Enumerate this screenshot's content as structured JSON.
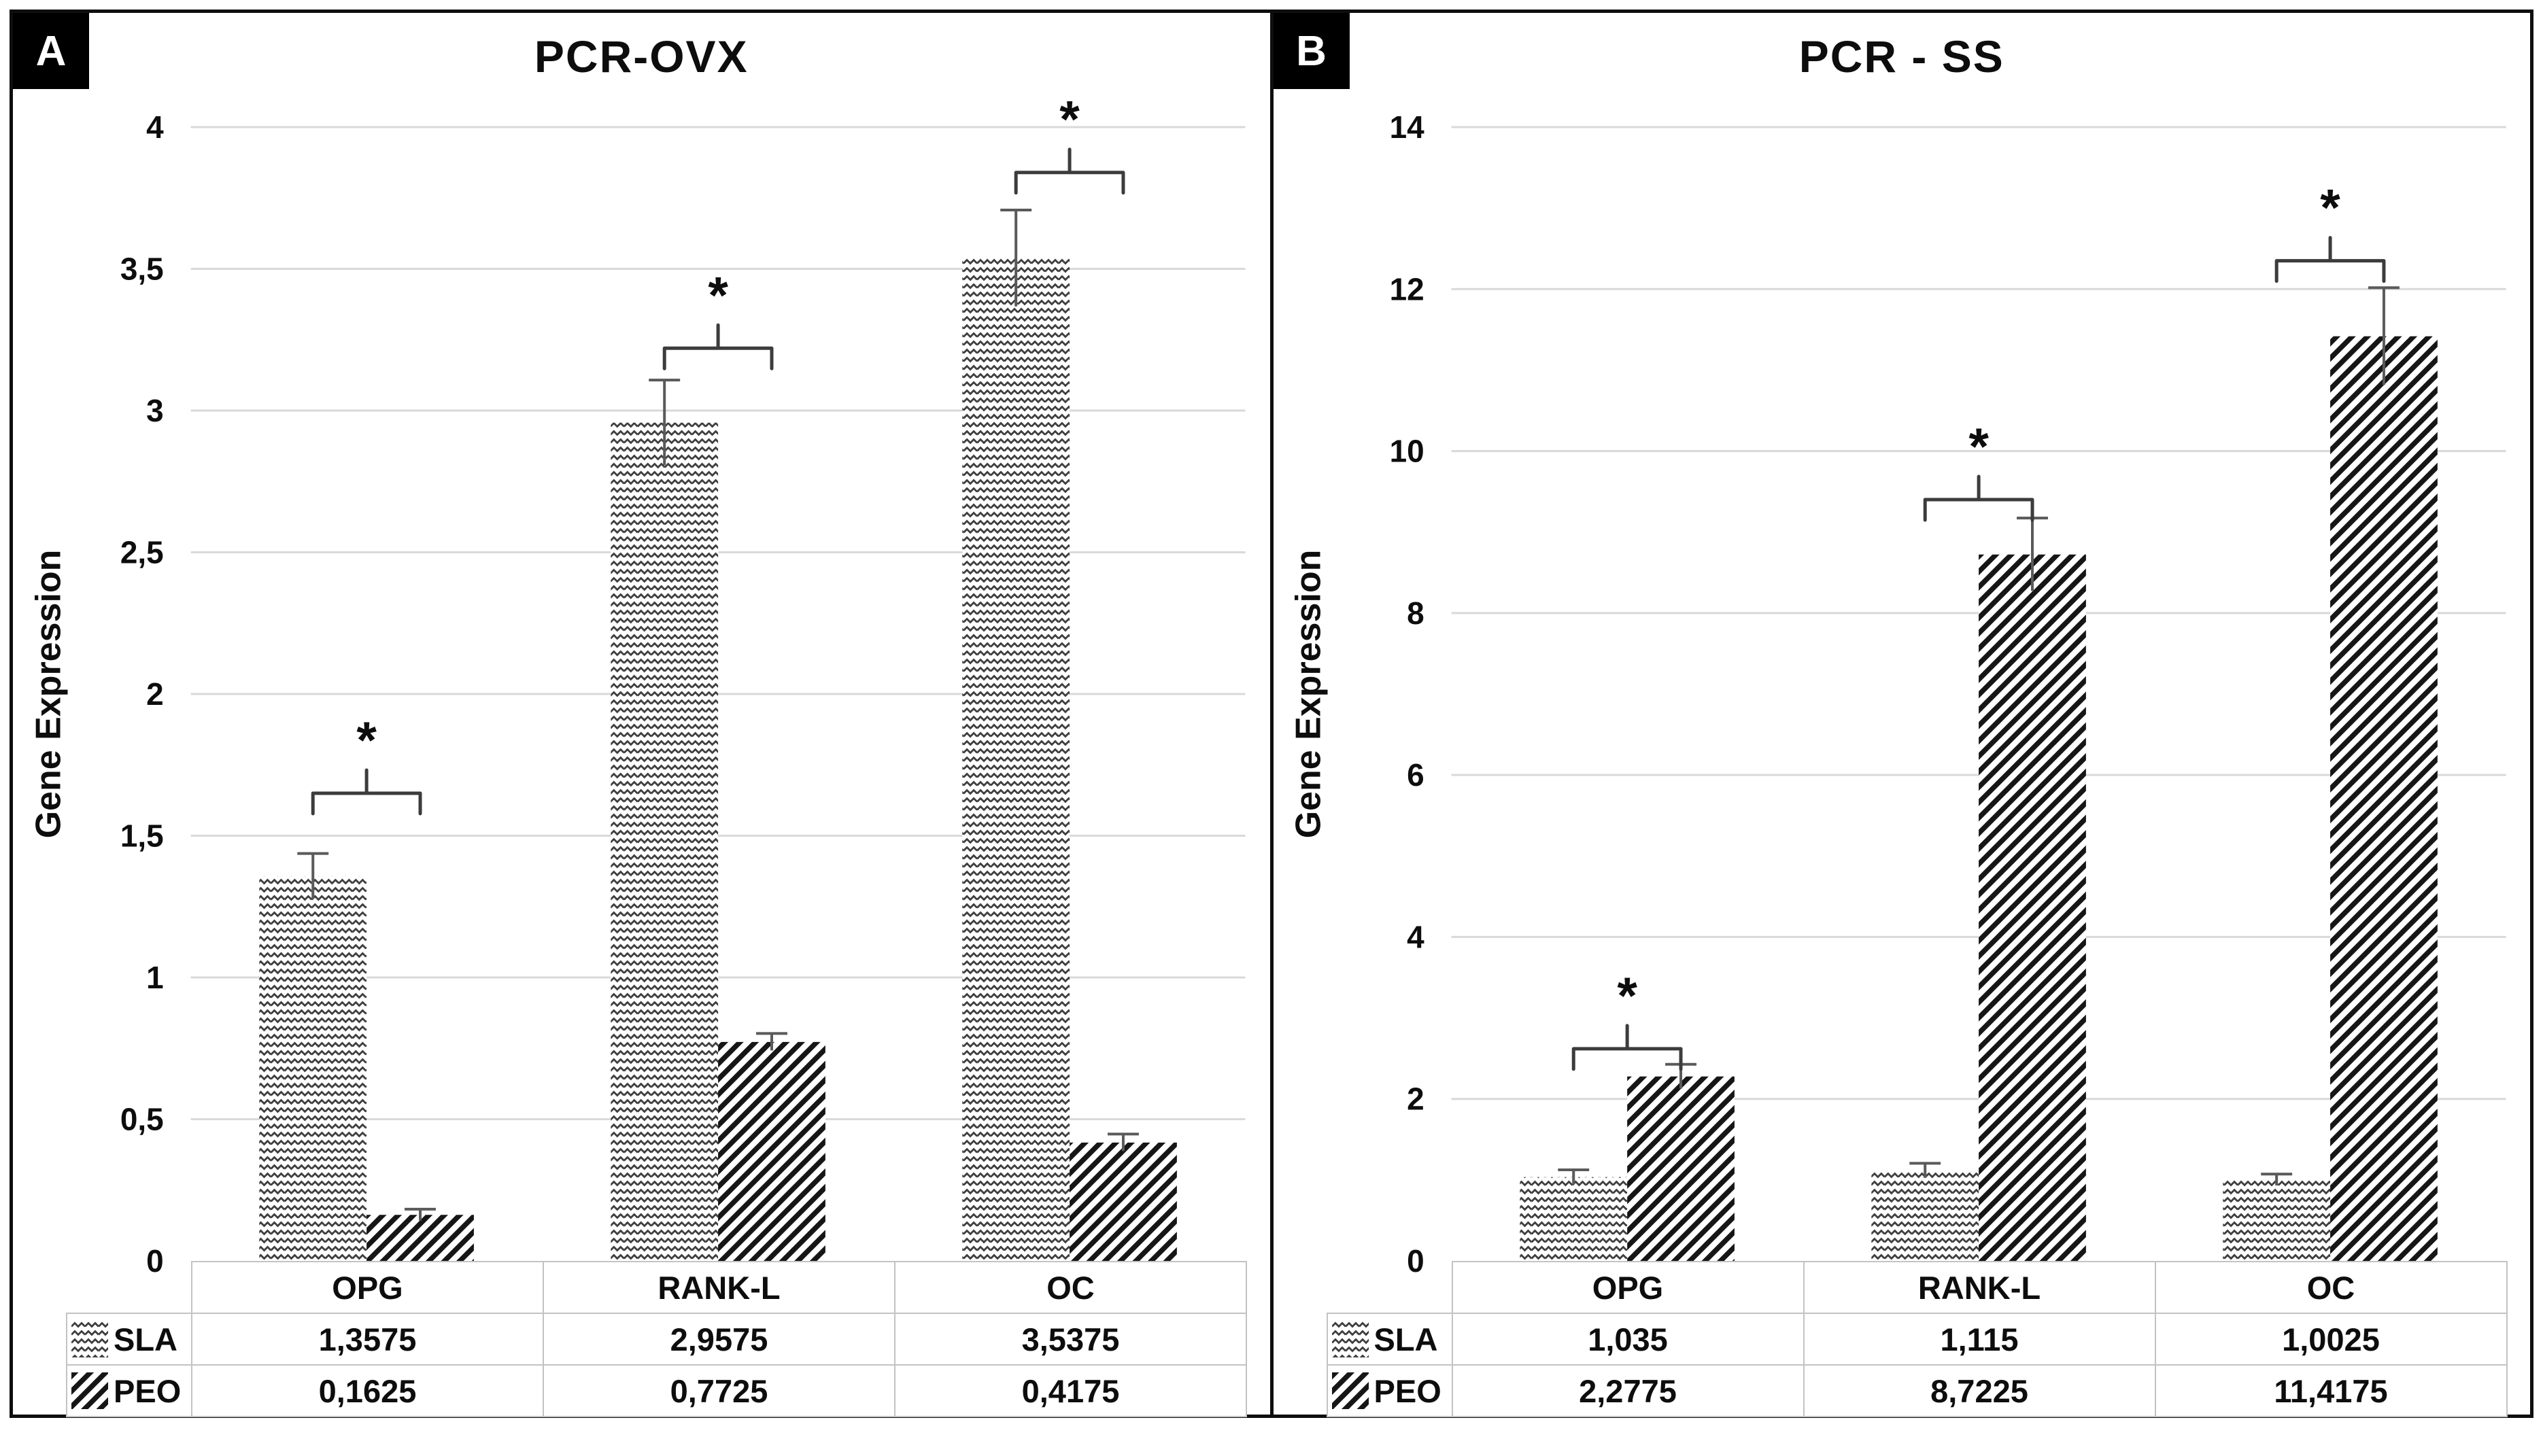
{
  "figure": {
    "panels": [
      {
        "tag": "A",
        "title": "PCR-OVX",
        "ylabel": "Gene Expression"
      },
      {
        "tag": "B",
        "title": "PCR - SS",
        "ylabel": "Gene Expression"
      }
    ]
  },
  "chart_data": [
    {
      "type": "bar",
      "panel": "A",
      "title": "PCR-OVX",
      "xlabel": "",
      "ylabel": "Gene Expression",
      "categories": [
        "OPG",
        "RANK-L",
        "OC"
      ],
      "series": [
        {
          "name": "SLA",
          "pattern": "wave",
          "values": [
            1.3575,
            2.9575,
            3.5375
          ],
          "errors": [
            0.08,
            0.15,
            0.17
          ],
          "display_values": [
            "1,3575",
            "2,9575",
            "3,5375"
          ]
        },
        {
          "name": "PEO",
          "pattern": "diagonal",
          "values": [
            0.1625,
            0.7725,
            0.4175
          ],
          "errors": [
            0.02,
            0.03,
            0.03
          ],
          "display_values": [
            "0,1625",
            "0,7725",
            "0,4175"
          ]
        }
      ],
      "ylim": [
        0,
        4
      ],
      "ytick_values": [
        4,
        3.5,
        3,
        2.5,
        2,
        1.5,
        1,
        0.5,
        0
      ],
      "ytick_labels": [
        "4",
        "3,5",
        "3",
        "2,5",
        "2",
        "1,5",
        "1",
        "0,5",
        "0"
      ],
      "grid": true,
      "legend_position": "table-row-headers",
      "significance": [
        {
          "category": "OPG",
          "label": "*",
          "bracket_y": 1.65
        },
        {
          "category": "RANK-L",
          "label": "*",
          "bracket_y": 3.22
        },
        {
          "category": "OC",
          "label": "*",
          "bracket_y": 3.84
        }
      ]
    },
    {
      "type": "bar",
      "panel": "B",
      "title": "PCR - SS",
      "xlabel": "",
      "ylabel": "Gene Expression",
      "categories": [
        "OPG",
        "RANK-L",
        "OC"
      ],
      "series": [
        {
          "name": "SLA",
          "pattern": "wave",
          "values": [
            1.035,
            1.115,
            1.0025
          ],
          "errors": [
            0.09,
            0.09,
            0.07
          ],
          "display_values": [
            "1,035",
            "1,115",
            "1,0025"
          ]
        },
        {
          "name": "PEO",
          "pattern": "diagonal",
          "values": [
            2.2775,
            8.7225,
            11.4175
          ],
          "errors": [
            0.15,
            0.45,
            0.6
          ],
          "display_values": [
            "2,2775",
            "8,7225",
            "11,4175"
          ]
        }
      ],
      "ylim": [
        0,
        14
      ],
      "ytick_values": [
        14,
        12,
        10,
        8,
        6,
        4,
        2,
        0
      ],
      "ytick_labels": [
        "14",
        "12",
        "10",
        "8",
        "6",
        "4",
        "2",
        "0"
      ],
      "grid": true,
      "legend_position": "table-row-headers",
      "significance": [
        {
          "category": "OPG",
          "label": "*",
          "bracket_y": 2.62
        },
        {
          "category": "RANK-L",
          "label": "*",
          "bracket_y": 9.4
        },
        {
          "category": "OC",
          "label": "*",
          "bracket_y": 12.35
        }
      ]
    }
  ],
  "style": {
    "grid_color": "#d9d9d9",
    "error_bar_color": "#5a5a5a",
    "bracket_color": "#3c3c3c",
    "wave_line_color": "#3d3d3d",
    "diagonal_line_color": "#161616",
    "text_color": "#0d0d0d"
  }
}
